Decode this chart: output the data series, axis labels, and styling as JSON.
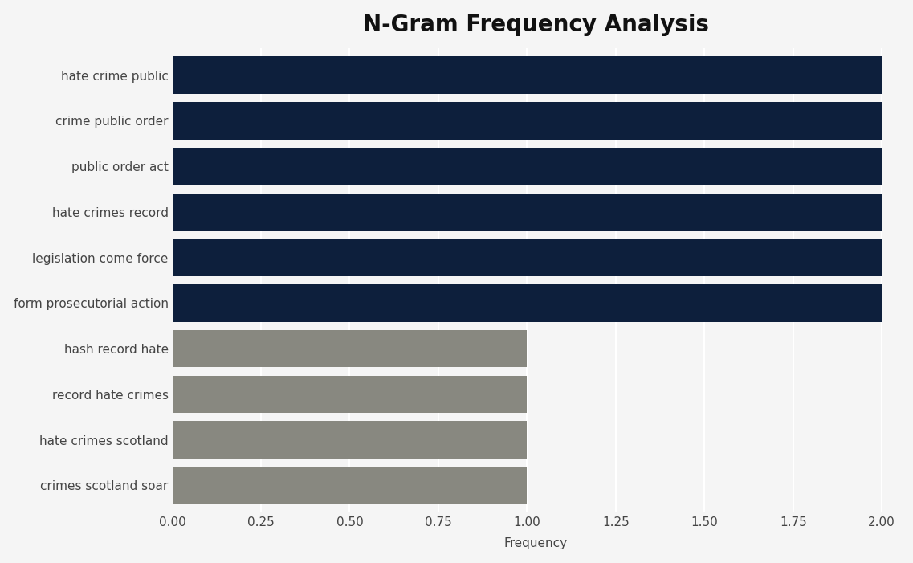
{
  "title": "N-Gram Frequency Analysis",
  "categories": [
    "crimes scotland soar",
    "hate crimes scotland",
    "record hate crimes",
    "hash record hate",
    "form prosecutorial action",
    "legislation come force",
    "hate crimes record",
    "public order act",
    "crime public order",
    "hate crime public"
  ],
  "values": [
    1,
    1,
    1,
    1,
    2,
    2,
    2,
    2,
    2,
    2
  ],
  "bar_colors": [
    "#888880",
    "#888880",
    "#888880",
    "#888880",
    "#0d1f3c",
    "#0d1f3c",
    "#0d1f3c",
    "#0d1f3c",
    "#0d1f3c",
    "#0d1f3c"
  ],
  "xlabel": "Frequency",
  "xlim": [
    0,
    2.05
  ],
  "xticks": [
    0.0,
    0.25,
    0.5,
    0.75,
    1.0,
    1.25,
    1.5,
    1.75,
    2.0
  ],
  "xtick_labels": [
    "0.00",
    "0.25",
    "0.50",
    "0.75",
    "1.00",
    "1.25",
    "1.50",
    "1.75",
    "2.00"
  ],
  "background_color": "#f5f5f5",
  "title_fontsize": 20,
  "label_fontsize": 11,
  "tick_fontsize": 11,
  "bar_height": 0.82
}
